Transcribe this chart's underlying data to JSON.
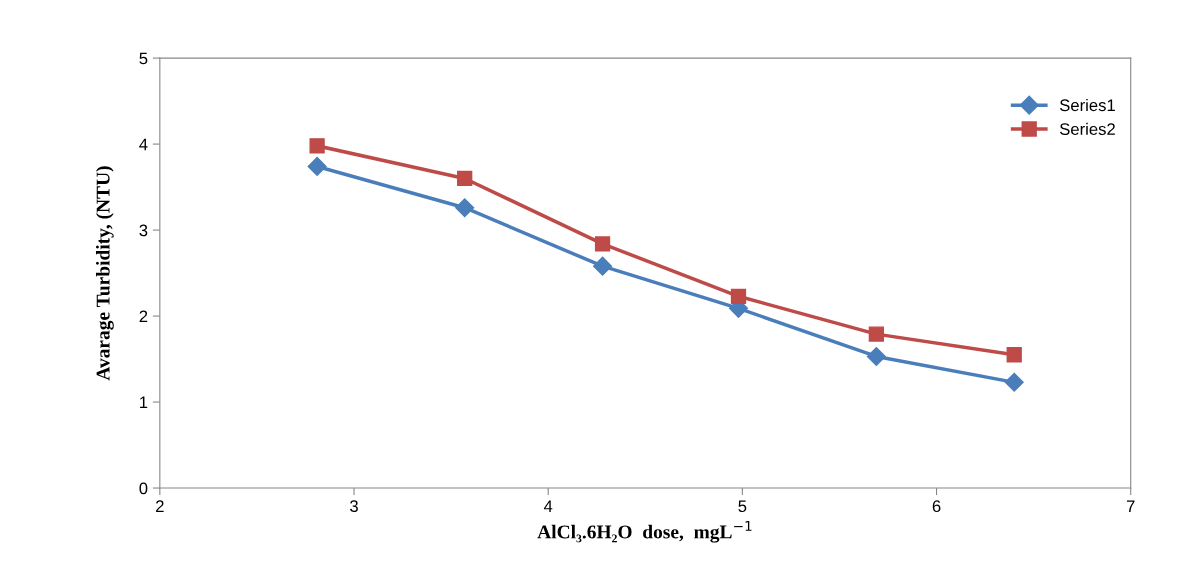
{
  "chart_data": {
    "type": "line",
    "xlabel": "AlCl₃.6H₂O  dose,  mgL$^{−1}$",
    "ylabel": "Avarage Turbidity, (NTU)",
    "xlim": [
      2,
      7
    ],
    "xticks": [
      2,
      3,
      4,
      5,
      6,
      7
    ],
    "ylim": [
      0,
      5
    ],
    "yticks": [
      0,
      1,
      2,
      3,
      4,
      5
    ],
    "grid": false,
    "legend": "top right",
    "line_style": "solid",
    "series": [
      {
        "name": "Series1",
        "color": "#4a7ebb",
        "marker": "diamond",
        "x": [
          2.81,
          3.57,
          4.28,
          4.98,
          5.69,
          6.4
        ],
        "values": [
          3.74,
          3.26,
          2.58,
          2.09,
          1.53,
          1.23
        ]
      },
      {
        "name": "Series2",
        "color": "#be4b48",
        "marker": "square",
        "x": [
          2.81,
          3.57,
          4.28,
          4.98,
          5.69,
          6.4
        ],
        "values": [
          3.98,
          3.6,
          2.84,
          2.23,
          1.79,
          1.55
        ]
      }
    ]
  }
}
